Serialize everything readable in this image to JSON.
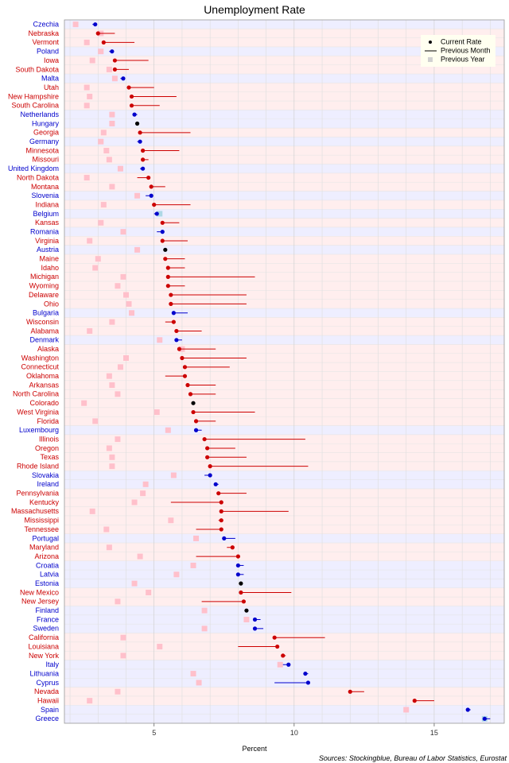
{
  "chart_data": {
    "type": "scatter",
    "title": "Unemployment Rate",
    "xlabel": "Percent",
    "xlim": [
      1.8,
      17.5
    ],
    "xticks": [
      5,
      10,
      15
    ],
    "source": "Sources: Stockingblue, Bureau of Labor Statistics, Eurostat",
    "legend": {
      "position": "top-right",
      "items": [
        "Current Rate",
        "Previous Month",
        "Previous Year"
      ]
    },
    "group_colors": {
      "eu": "#0000cc",
      "us": "#cc0000",
      "same": "#000000"
    },
    "row_band_colors": {
      "eu": "#eeeeff",
      "us": "#ffeeee"
    },
    "previous_year_color": "#ffc0cb",
    "previous_year_same_color": "#add8e6",
    "rows": [
      {
        "name": "Czechia",
        "group": "eu",
        "current": 2.9,
        "prev_month": 2.8,
        "prev_year": 2.2
      },
      {
        "name": "Nebraska",
        "group": "us",
        "current": 3.0,
        "prev_month": 3.6,
        "prev_year": 3.1
      },
      {
        "name": "Vermont",
        "group": "us",
        "current": 3.2,
        "prev_month": 4.3,
        "prev_year": 2.6
      },
      {
        "name": "Poland",
        "group": "eu",
        "current": 3.5,
        "prev_month": 3.4,
        "prev_year": 3.1
      },
      {
        "name": "Iowa",
        "group": "us",
        "current": 3.6,
        "prev_month": 4.8,
        "prev_year": 2.8
      },
      {
        "name": "South Dakota",
        "group": "us",
        "current": 3.6,
        "prev_month": 4.1,
        "prev_year": 3.4
      },
      {
        "name": "Malta",
        "group": "eu",
        "current": 3.9,
        "prev_month": 3.8,
        "prev_year": 3.6
      },
      {
        "name": "Utah",
        "group": "us",
        "current": 4.1,
        "prev_month": 5.0,
        "prev_year": 2.6
      },
      {
        "name": "New Hampshire",
        "group": "us",
        "current": 4.2,
        "prev_month": 5.8,
        "prev_year": 2.7
      },
      {
        "name": "South Carolina",
        "group": "us",
        "current": 4.2,
        "prev_month": 5.2,
        "prev_year": 2.6
      },
      {
        "name": "Netherlands",
        "group": "eu",
        "current": 4.3,
        "prev_month": 4.4,
        "prev_year": 3.5
      },
      {
        "name": "Hungary",
        "group": "eu",
        "current": 4.4,
        "prev_month": 4.4,
        "prev_year": 3.5
      },
      {
        "name": "Georgia",
        "group": "us",
        "current": 4.5,
        "prev_month": 6.3,
        "prev_year": 3.2
      },
      {
        "name": "Germany",
        "group": "eu",
        "current": 4.5,
        "prev_month": 4.4,
        "prev_year": 3.1
      },
      {
        "name": "Minnesota",
        "group": "us",
        "current": 4.6,
        "prev_month": 5.9,
        "prev_year": 3.3
      },
      {
        "name": "Missouri",
        "group": "us",
        "current": 4.6,
        "prev_month": 4.8,
        "prev_year": 3.4
      },
      {
        "name": "United Kingdom",
        "group": "eu",
        "current": 4.6,
        "prev_month": 4.5,
        "prev_year": 3.8
      },
      {
        "name": "North Dakota",
        "group": "us",
        "current": 4.8,
        "prev_month": 4.4,
        "prev_year": 2.6
      },
      {
        "name": "Montana",
        "group": "us",
        "current": 4.9,
        "prev_month": 5.4,
        "prev_year": 3.5
      },
      {
        "name": "Slovenia",
        "group": "eu",
        "current": 4.9,
        "prev_month": 4.7,
        "prev_year": 4.4
      },
      {
        "name": "Indiana",
        "group": "us",
        "current": 5.0,
        "prev_month": 6.3,
        "prev_year": 3.2
      },
      {
        "name": "Belgium",
        "group": "eu",
        "current": 5.1,
        "prev_month": 5.0,
        "prev_year": 5.2
      },
      {
        "name": "Kansas",
        "group": "us",
        "current": 5.3,
        "prev_month": 5.9,
        "prev_year": 3.1
      },
      {
        "name": "Romania",
        "group": "eu",
        "current": 5.3,
        "prev_month": 5.1,
        "prev_year": 3.9
      },
      {
        "name": "Virginia",
        "group": "us",
        "current": 5.3,
        "prev_month": 6.2,
        "prev_year": 2.7
      },
      {
        "name": "Austria",
        "group": "eu",
        "current": 5.4,
        "prev_month": 5.4,
        "prev_year": 4.4
      },
      {
        "name": "Maine",
        "group": "us",
        "current": 5.4,
        "prev_month": 6.1,
        "prev_year": 3.0
      },
      {
        "name": "Idaho",
        "group": "us",
        "current": 5.5,
        "prev_month": 6.1,
        "prev_year": 2.9
      },
      {
        "name": "Michigan",
        "group": "us",
        "current": 5.5,
        "prev_month": 8.6,
        "prev_year": 3.9
      },
      {
        "name": "Wyoming",
        "group": "us",
        "current": 5.5,
        "prev_month": 6.1,
        "prev_year": 3.7
      },
      {
        "name": "Delaware",
        "group": "us",
        "current": 5.6,
        "prev_month": 8.3,
        "prev_year": 4.0
      },
      {
        "name": "Ohio",
        "group": "us",
        "current": 5.6,
        "prev_month": 8.3,
        "prev_year": 4.1
      },
      {
        "name": "Bulgaria",
        "group": "eu",
        "current": 5.7,
        "prev_month": 6.2,
        "prev_year": 4.2
      },
      {
        "name": "Wisconsin",
        "group": "us",
        "current": 5.7,
        "prev_month": 5.4,
        "prev_year": 3.5
      },
      {
        "name": "Alabama",
        "group": "us",
        "current": 5.8,
        "prev_month": 6.7,
        "prev_year": 2.7
      },
      {
        "name": "Denmark",
        "group": "eu",
        "current": 5.8,
        "prev_month": 6.0,
        "prev_year": 5.2
      },
      {
        "name": "Alaska",
        "group": "us",
        "current": 5.9,
        "prev_month": 7.2,
        "prev_year": 6.0
      },
      {
        "name": "Washington",
        "group": "us",
        "current": 6.0,
        "prev_month": 8.3,
        "prev_year": 4.0
      },
      {
        "name": "Connecticut",
        "group": "us",
        "current": 6.1,
        "prev_month": 7.7,
        "prev_year": 3.8
      },
      {
        "name": "Oklahoma",
        "group": "us",
        "current": 6.1,
        "prev_month": 5.4,
        "prev_year": 3.4
      },
      {
        "name": "Arkansas",
        "group": "us",
        "current": 6.2,
        "prev_month": 7.2,
        "prev_year": 3.5
      },
      {
        "name": "North Carolina",
        "group": "us",
        "current": 6.3,
        "prev_month": 7.2,
        "prev_year": 3.7
      },
      {
        "name": "Colorado",
        "group": "us",
        "current": 6.4,
        "prev_month": 6.4,
        "prev_year": 2.5
      },
      {
        "name": "West Virginia",
        "group": "us",
        "current": 6.4,
        "prev_month": 8.6,
        "prev_year": 5.1
      },
      {
        "name": "Florida",
        "group": "us",
        "current": 6.5,
        "prev_month": 7.2,
        "prev_year": 2.9
      },
      {
        "name": "Luxembourg",
        "group": "eu",
        "current": 6.5,
        "prev_month": 6.7,
        "prev_year": 5.5
      },
      {
        "name": "Illinois",
        "group": "us",
        "current": 6.8,
        "prev_month": 10.4,
        "prev_year": 3.7
      },
      {
        "name": "Oregon",
        "group": "us",
        "current": 6.9,
        "prev_month": 7.9,
        "prev_year": 3.4
      },
      {
        "name": "Texas",
        "group": "us",
        "current": 6.9,
        "prev_month": 8.3,
        "prev_year": 3.5
      },
      {
        "name": "Rhode Island",
        "group": "us",
        "current": 7.0,
        "prev_month": 10.5,
        "prev_year": 3.5
      },
      {
        "name": "Slovakia",
        "group": "eu",
        "current": 7.0,
        "prev_month": 6.8,
        "prev_year": 5.7
      },
      {
        "name": "Ireland",
        "group": "eu",
        "current": 7.2,
        "prev_month": 7.3,
        "prev_year": 4.7
      },
      {
        "name": "Pennsylvania",
        "group": "us",
        "current": 7.3,
        "prev_month": 8.3,
        "prev_year": 4.6
      },
      {
        "name": "Kentucky",
        "group": "us",
        "current": 7.4,
        "prev_month": 5.6,
        "prev_year": 4.3
      },
      {
        "name": "Massachusetts",
        "group": "us",
        "current": 7.4,
        "prev_month": 9.8,
        "prev_year": 2.8
      },
      {
        "name": "Mississippi",
        "group": "us",
        "current": 7.4,
        "prev_month": 7.3,
        "prev_year": 5.6
      },
      {
        "name": "Tennessee",
        "group": "us",
        "current": 7.4,
        "prev_month": 6.5,
        "prev_year": 3.3
      },
      {
        "name": "Portugal",
        "group": "eu",
        "current": 7.5,
        "prev_month": 7.9,
        "prev_year": 6.5
      },
      {
        "name": "Maryland",
        "group": "us",
        "current": 7.8,
        "prev_month": 7.6,
        "prev_year": 3.4
      },
      {
        "name": "Arizona",
        "group": "us",
        "current": 8.0,
        "prev_month": 6.5,
        "prev_year": 4.5
      },
      {
        "name": "Croatia",
        "group": "eu",
        "current": 8.0,
        "prev_month": 8.2,
        "prev_year": 6.4
      },
      {
        "name": "Latvia",
        "group": "eu",
        "current": 8.0,
        "prev_month": 8.2,
        "prev_year": 5.8
      },
      {
        "name": "Estonia",
        "group": "eu",
        "current": 8.1,
        "prev_month": 8.1,
        "prev_year": 4.3
      },
      {
        "name": "New Mexico",
        "group": "us",
        "current": 8.1,
        "prev_month": 9.9,
        "prev_year": 4.8
      },
      {
        "name": "New Jersey",
        "group": "us",
        "current": 8.2,
        "prev_month": 6.7,
        "prev_year": 3.7
      },
      {
        "name": "Finland",
        "group": "eu",
        "current": 8.3,
        "prev_month": 8.3,
        "prev_year": 6.8
      },
      {
        "name": "France",
        "group": "eu",
        "current": 8.6,
        "prev_month": 8.8,
        "prev_year": 8.3
      },
      {
        "name": "Sweden",
        "group": "eu",
        "current": 8.6,
        "prev_month": 8.9,
        "prev_year": 6.8
      },
      {
        "name": "California",
        "group": "us",
        "current": 9.3,
        "prev_month": 11.1,
        "prev_year": 3.9
      },
      {
        "name": "Louisiana",
        "group": "us",
        "current": 9.4,
        "prev_month": 8.0,
        "prev_year": 5.2
      },
      {
        "name": "New York",
        "group": "us",
        "current": 9.6,
        "prev_month": 9.7,
        "prev_year": 3.9
      },
      {
        "name": "Italy",
        "group": "eu",
        "current": 9.8,
        "prev_month": 9.6,
        "prev_year": 9.5
      },
      {
        "name": "Lithuania",
        "group": "eu",
        "current": 10.4,
        "prev_month": 10.5,
        "prev_year": 6.4
      },
      {
        "name": "Cyprus",
        "group": "eu",
        "current": 10.5,
        "prev_month": 9.3,
        "prev_year": 6.6
      },
      {
        "name": "Nevada",
        "group": "us",
        "current": 12.0,
        "prev_month": 12.5,
        "prev_year": 3.7
      },
      {
        "name": "Hawaii",
        "group": "us",
        "current": 14.3,
        "prev_month": 15.0,
        "prev_year": 2.7
      },
      {
        "name": "Spain",
        "group": "eu",
        "current": 16.2,
        "prev_month": 16.3,
        "prev_year": 14.0
      },
      {
        "name": "Greece",
        "group": "eu",
        "current": 16.8,
        "prev_month": 17.0,
        "prev_year": 16.8
      }
    ]
  }
}
